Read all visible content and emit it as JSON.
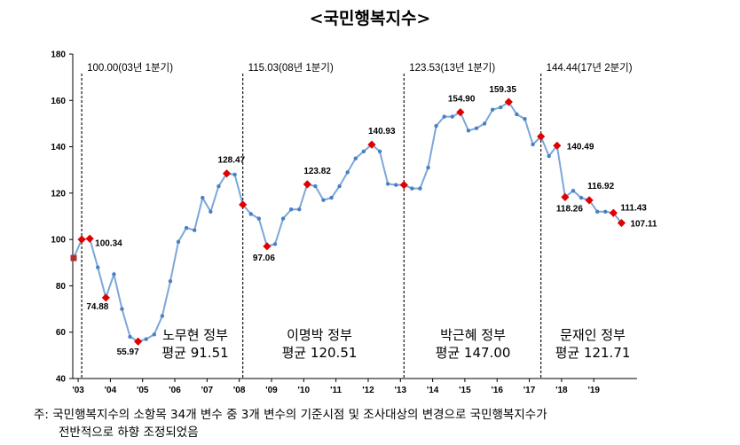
{
  "chart_data": {
    "type": "line",
    "title": "<국민행복지수>",
    "ylim": [
      40,
      180
    ],
    "yticks": [
      40,
      60,
      80,
      100,
      120,
      140,
      160,
      180
    ],
    "x_start": "2003",
    "x_end": "2019",
    "xtick_labels": [
      "'03",
      "'04",
      "'05",
      "'06",
      "'07",
      "'08",
      "'09",
      "'10",
      "'11",
      "'12",
      "'13",
      "'14",
      "'15",
      "'16",
      "'17",
      "'18",
      "'19"
    ],
    "grid": false,
    "series": [
      {
        "values": [
          92,
          100.0,
          100.34,
          88,
          74.88,
          85,
          70,
          58,
          55.97,
          57,
          59,
          67,
          82,
          99,
          105,
          104,
          118,
          112,
          123,
          128.47,
          128,
          115.03,
          111,
          109,
          97.06,
          98,
          109,
          113,
          113,
          123.82,
          123,
          117,
          118,
          123,
          129,
          135,
          138,
          140.93,
          138,
          124,
          123.53,
          123.53,
          122,
          122,
          131,
          149,
          153,
          153,
          154.9,
          147,
          148,
          150,
          156,
          157,
          159.35,
          154,
          152,
          141,
          144.44,
          136,
          140.49,
          118.26,
          121,
          118,
          116.92,
          112,
          112,
          111.43,
          107.11
        ]
      }
    ],
    "highlight_points": [
      {
        "index": 1,
        "value": 100.0
      },
      {
        "index": 2,
        "value": 100.34,
        "label": "100.34"
      },
      {
        "index": 4,
        "value": 74.88,
        "label": "74.88"
      },
      {
        "index": 8,
        "value": 55.97,
        "label": "55.97"
      },
      {
        "index": 19,
        "value": 128.47,
        "label": "128.47"
      },
      {
        "index": 21,
        "value": 115.03
      },
      {
        "index": 24,
        "value": 97.06,
        "label": "97.06"
      },
      {
        "index": 29,
        "value": 123.82,
        "label": "123.82"
      },
      {
        "index": 37,
        "value": 140.93,
        "label": "140.93"
      },
      {
        "index": 41,
        "value": 123.53
      },
      {
        "index": 48,
        "value": 154.9,
        "label": "154.90"
      },
      {
        "index": 54,
        "value": 159.35,
        "label": "159.35"
      },
      {
        "index": 58,
        "value": 144.44
      },
      {
        "index": 60,
        "value": 140.49,
        "label": "140.49"
      },
      {
        "index": 61,
        "value": 118.26,
        "label": "118.26"
      },
      {
        "index": 64,
        "value": 116.92,
        "label": "116.92"
      },
      {
        "index": 67,
        "value": 111.43,
        "label": "111.43"
      },
      {
        "index": 68,
        "value": 107.11,
        "label": "107.11"
      }
    ],
    "period_markers": [
      {
        "index": 1,
        "label": "100.00(03년 1분기)"
      },
      {
        "index": 21,
        "label": "115.03(08년 1분기)"
      },
      {
        "index": 41,
        "label": "123.53(13년 1분기)"
      },
      {
        "index": 58,
        "label": "144.44(17년 2분기)"
      }
    ],
    "government_labels": [
      {
        "name": "노무현 정부",
        "average": "평균 91.51"
      },
      {
        "name": "이명박 정부",
        "average": "평균 120.51"
      },
      {
        "name": "박근혜 정부",
        "average": "평균 147.00"
      },
      {
        "name": "문재인 정부",
        "average": "평균 121.71"
      }
    ],
    "colors": {
      "line": "#7BA7D9",
      "point": "#4A7FC1",
      "highlight": "#E00000",
      "first_point": "#B03030"
    }
  },
  "footnote": {
    "line1": "주: 국민행복지수의 소항목 34개 변수 중 3개 변수의 기준시점 및 조사대상의 변경으로 국민행복지수가",
    "line2": "전반적으로 하향 조정되었음"
  }
}
